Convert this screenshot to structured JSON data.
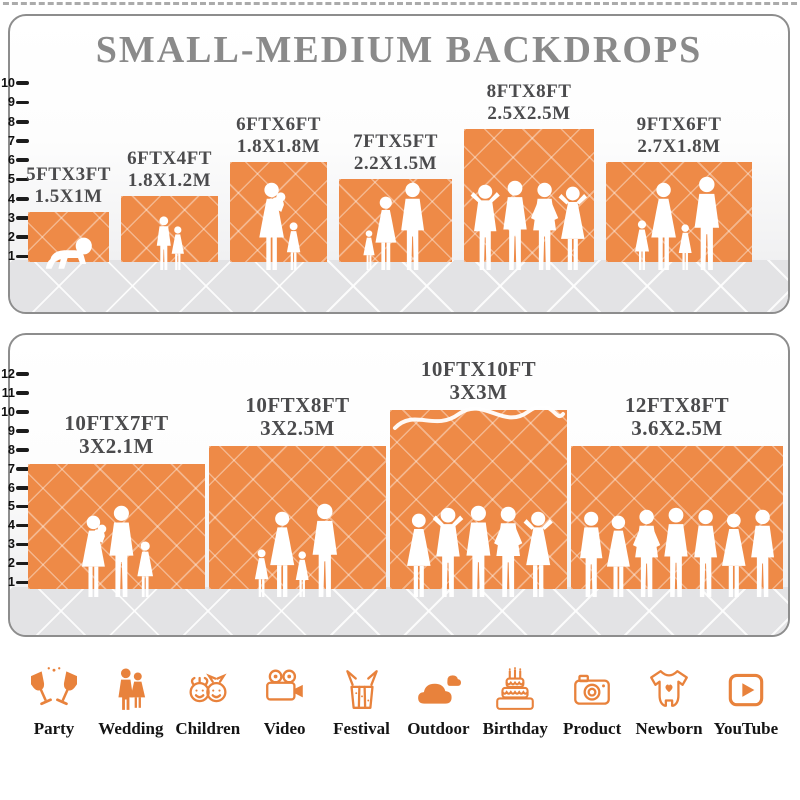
{
  "title": "SMALL-MEDIUM BACKDROPS",
  "colors": {
    "backdrop_orange": "#EE8A47",
    "icon_orange": "#E8823C",
    "title_gray": "#8A8A8A",
    "label_gray": "#4B4B4D",
    "floor_gray": "#E3E3E5"
  },
  "panels": [
    {
      "name": "small-backdrops",
      "ruler": [
        "10",
        "9",
        "8",
        "7",
        "6",
        "5",
        "4",
        "3",
        "2",
        "1"
      ],
      "backdrops": [
        {
          "size_ft": "5FTX3FT",
          "size_m": "1.5X1M",
          "w_ft": 5,
          "h_ft": 3,
          "figures": [
            [
              "baby",
              36
            ]
          ]
        },
        {
          "size_ft": "6FTX4FT",
          "size_m": "1.8X1.2M",
          "w_ft": 6,
          "h_ft": 4,
          "figures": [
            [
              "boy",
              54
            ],
            [
              "girl",
              44
            ]
          ]
        },
        {
          "size_ft": "6FTX6FT",
          "size_m": "1.8X1.8M",
          "w_ft": 6,
          "h_ft": 6,
          "figures": [
            [
              "woman-baby",
              88
            ],
            [
              "girl",
              48
            ]
          ]
        },
        {
          "size_ft": "7FTX5FT",
          "size_m": "2.2X1.5M",
          "w_ft": 7,
          "h_ft": 5,
          "figures": [
            [
              "girl",
              40
            ],
            [
              "woman",
              74
            ],
            [
              "man",
              88
            ]
          ]
        },
        {
          "size_ft": "8FTX8FT",
          "size_m": "2.5X2.5M",
          "w_ft": 8,
          "h_ft": 8,
          "figures": [
            [
              "man-armsup",
              86
            ],
            [
              "man",
              90
            ],
            [
              "man-hips",
              88
            ],
            [
              "woman-armsup",
              84
            ]
          ]
        },
        {
          "size_ft": "9FTX6FT",
          "size_m": "2.7X1.8M",
          "w_ft": 9,
          "h_ft": 6,
          "figures": [
            [
              "girl",
              50
            ],
            [
              "woman",
              88
            ],
            [
              "girl",
              46
            ],
            [
              "man",
              94
            ]
          ]
        }
      ]
    },
    {
      "name": "medium-backdrops",
      "ruler": [
        "12",
        "11",
        "10",
        "9",
        "8",
        "7",
        "6",
        "5",
        "4",
        "3",
        "2",
        "1"
      ],
      "backdrops": [
        {
          "size_ft": "10FTX7FT",
          "size_m": "3X2.1M",
          "w_ft": 10,
          "h_ft": 7,
          "figures": [
            [
              "woman-baby",
              82
            ],
            [
              "man",
              92
            ],
            [
              "girl",
              56
            ]
          ]
        },
        {
          "size_ft": "10FTX8FT",
          "size_m": "3X2.5M",
          "w_ft": 10,
          "h_ft": 8,
          "figures": [
            [
              "girl",
              48
            ],
            [
              "woman",
              86
            ],
            [
              "girl",
              46
            ],
            [
              "man",
              94
            ]
          ]
        },
        {
          "size_ft": "10FTX10FT",
          "size_m": "3X3M",
          "w_ft": 10,
          "h_ft": 10,
          "decor": "script-flourish",
          "figures": [
            [
              "woman",
              84
            ],
            [
              "man-armsup",
              90
            ],
            [
              "man",
              92
            ],
            [
              "man-hips",
              91
            ],
            [
              "woman-armsup",
              86
            ]
          ]
        },
        {
          "size_ft": "12FTX8FT",
          "size_m": "3.6X2.5M",
          "w_ft": 12,
          "h_ft": 8,
          "figures": [
            [
              "man",
              86
            ],
            [
              "woman",
              82
            ],
            [
              "man-hips",
              88
            ],
            [
              "man",
              90
            ],
            [
              "man",
              88
            ],
            [
              "woman",
              84
            ],
            [
              "man",
              88
            ]
          ]
        }
      ]
    }
  ],
  "categories": [
    {
      "label": "Party",
      "icon": "party-icon"
    },
    {
      "label": "Wedding",
      "icon": "wedding-icon"
    },
    {
      "label": "Children",
      "icon": "children-icon"
    },
    {
      "label": "Video",
      "icon": "video-icon"
    },
    {
      "label": "Festival",
      "icon": "festival-icon"
    },
    {
      "label": "Outdoor",
      "icon": "outdoor-icon"
    },
    {
      "label": "Birthday",
      "icon": "birthday-icon"
    },
    {
      "label": "Product",
      "icon": "product-icon"
    },
    {
      "label": "Newborn",
      "icon": "newborn-icon"
    },
    {
      "label": "YouTube",
      "icon": "youtube-icon"
    }
  ]
}
